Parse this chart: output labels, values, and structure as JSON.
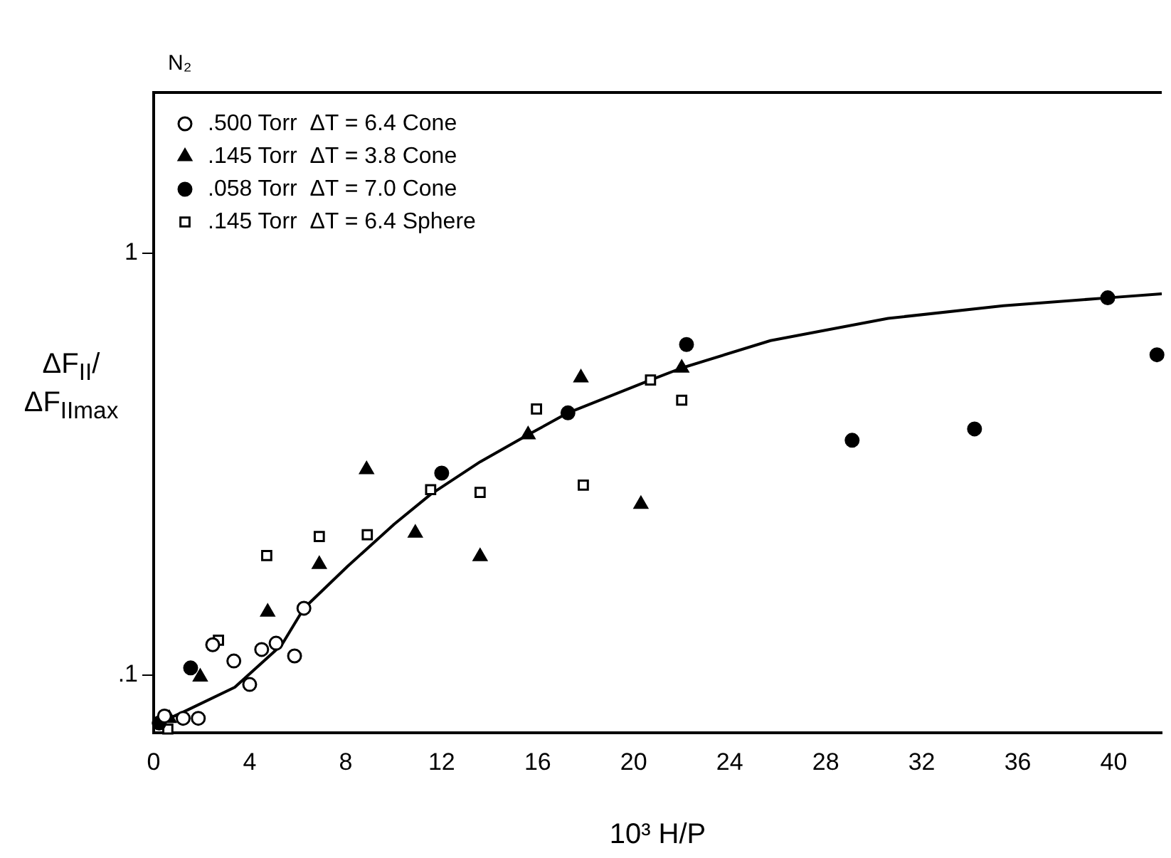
{
  "chart_data": {
    "type": "scatter",
    "title": "N₂",
    "xlabel": "10³ H/P",
    "ylabel": "ΔF$_{II}$/ΔF$_{IImax}$",
    "log": "y",
    "grid": false,
    "legend": "top left",
    "xlim": [
      0,
      42
    ],
    "xticks": [
      0,
      4,
      8,
      12,
      16,
      20,
      24,
      28,
      32,
      36,
      40
    ],
    "ylim": [
      0.073,
      2.4
    ],
    "yticks": [
      {
        "value": 0.1,
        "label": ".1"
      },
      1
    ],
    "series": [
      {
        "name": ".500 Torr  ΔT = 6.4 Cone",
        "color": "#ffffff",
        "marker": "circle",
        "x": [
          0.45,
          1.23,
          1.86,
          2.46,
          3.34,
          4.0,
          4.5,
          5.1,
          5.87,
          6.26
        ],
        "values": [
          0.08,
          0.079,
          0.079,
          0.118,
          0.108,
          0.095,
          0.115,
          0.119,
          0.111,
          0.144
        ]
      },
      {
        "name": ".145 Torr  ΔT = 3.8 Cone",
        "color": "#000000",
        "marker": "triangle",
        "x": [
          0.65,
          1.94,
          4.75,
          6.9,
          8.87,
          10.9,
          13.6,
          15.6,
          17.8,
          20.3,
          22.0
        ],
        "values": [
          0.079,
          0.099,
          0.141,
          0.183,
          0.307,
          0.217,
          0.191,
          0.371,
          0.506,
          0.254,
          0.534
        ]
      },
      {
        "name": ".058 Torr  ΔT = 7.0 Cone",
        "color": "#000000",
        "marker": "circle",
        "x": [
          0.23,
          1.54,
          12.0,
          17.26,
          22.2,
          29.1,
          34.2,
          39.75,
          41.8
        ],
        "values": [
          0.077,
          0.104,
          0.301,
          0.418,
          0.607,
          0.36,
          0.383,
          0.783,
          0.574
        ]
      },
      {
        "name": ".145 Torr  ΔT = 6.4 Sphere",
        "color": "#ffffff",
        "marker": "square",
        "x": [
          0.59,
          2.7,
          4.71,
          6.9,
          8.9,
          11.54,
          13.6,
          15.95,
          17.9,
          20.7,
          22.0
        ],
        "values": [
          0.0745,
          0.121,
          0.192,
          0.213,
          0.215,
          0.275,
          0.271,
          0.427,
          0.282,
          0.5,
          0.448
        ]
      },
      {
        "type": "line",
        "color": "#000000",
        "marker": "none",
        "x": [
          0.06,
          1.4,
          3.38,
          5.34,
          6.26,
          8.08,
          10.03,
          11.54,
          13.6,
          15.6,
          17.26,
          20.7,
          22.0,
          25.7,
          30.6,
          35.4,
          39.75,
          42
        ],
        "values": [
          0.0763,
          0.0826,
          0.0936,
          0.118,
          0.144,
          0.181,
          0.228,
          0.268,
          0.32,
          0.371,
          0.418,
          0.5,
          0.534,
          0.62,
          0.7,
          0.75,
          0.783,
          0.8
        ]
      }
    ]
  }
}
